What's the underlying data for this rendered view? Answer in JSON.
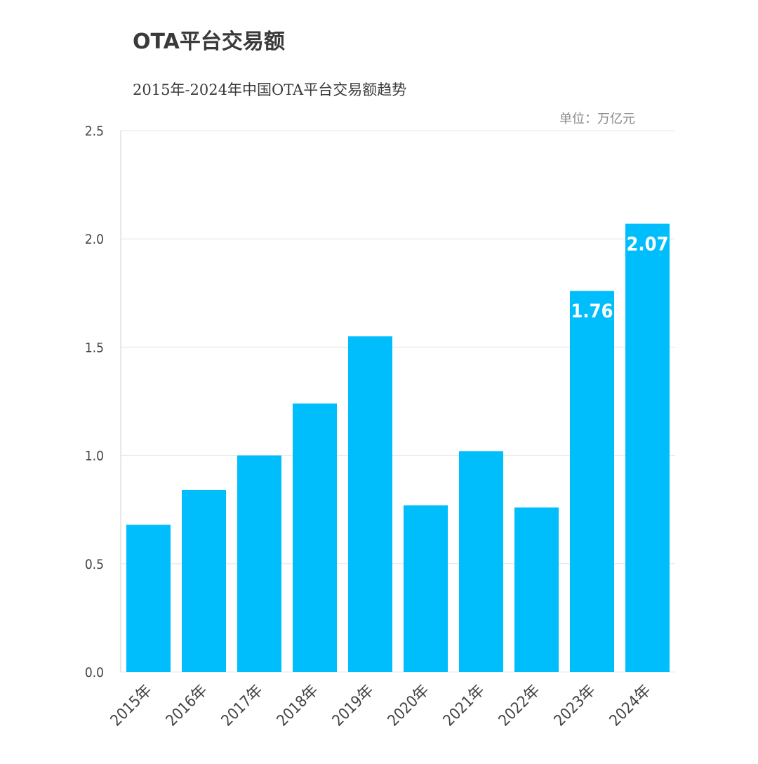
{
  "title": "OTA平台交易额",
  "subtitle": "2015年-2024年中国OTA平台交易额趋势",
  "unit": "单位：万亿元",
  "colors": {
    "bar": "#00bdfc",
    "grid": "#e6e6e6",
    "axis": "#d0d0d0",
    "text": "#444444"
  },
  "chart_data": {
    "type": "bar",
    "categories": [
      "2015年",
      "2016年",
      "2017年",
      "2018年",
      "2019年",
      "2020年",
      "2021年",
      "2022年",
      "2023年",
      "2024年"
    ],
    "values": [
      0.68,
      0.84,
      1.0,
      1.24,
      1.55,
      0.77,
      1.02,
      0.76,
      1.76,
      2.07
    ],
    "data_labels": [
      "",
      "",
      "",
      "",
      "",
      "",
      "",
      "",
      "1.76",
      "2.07"
    ],
    "yticks": [
      "0.0",
      "0.5",
      "1.0",
      "1.5",
      "2.0",
      "2.5"
    ],
    "ylim": [
      0,
      2.5
    ],
    "grid": true,
    "legend": "none"
  }
}
